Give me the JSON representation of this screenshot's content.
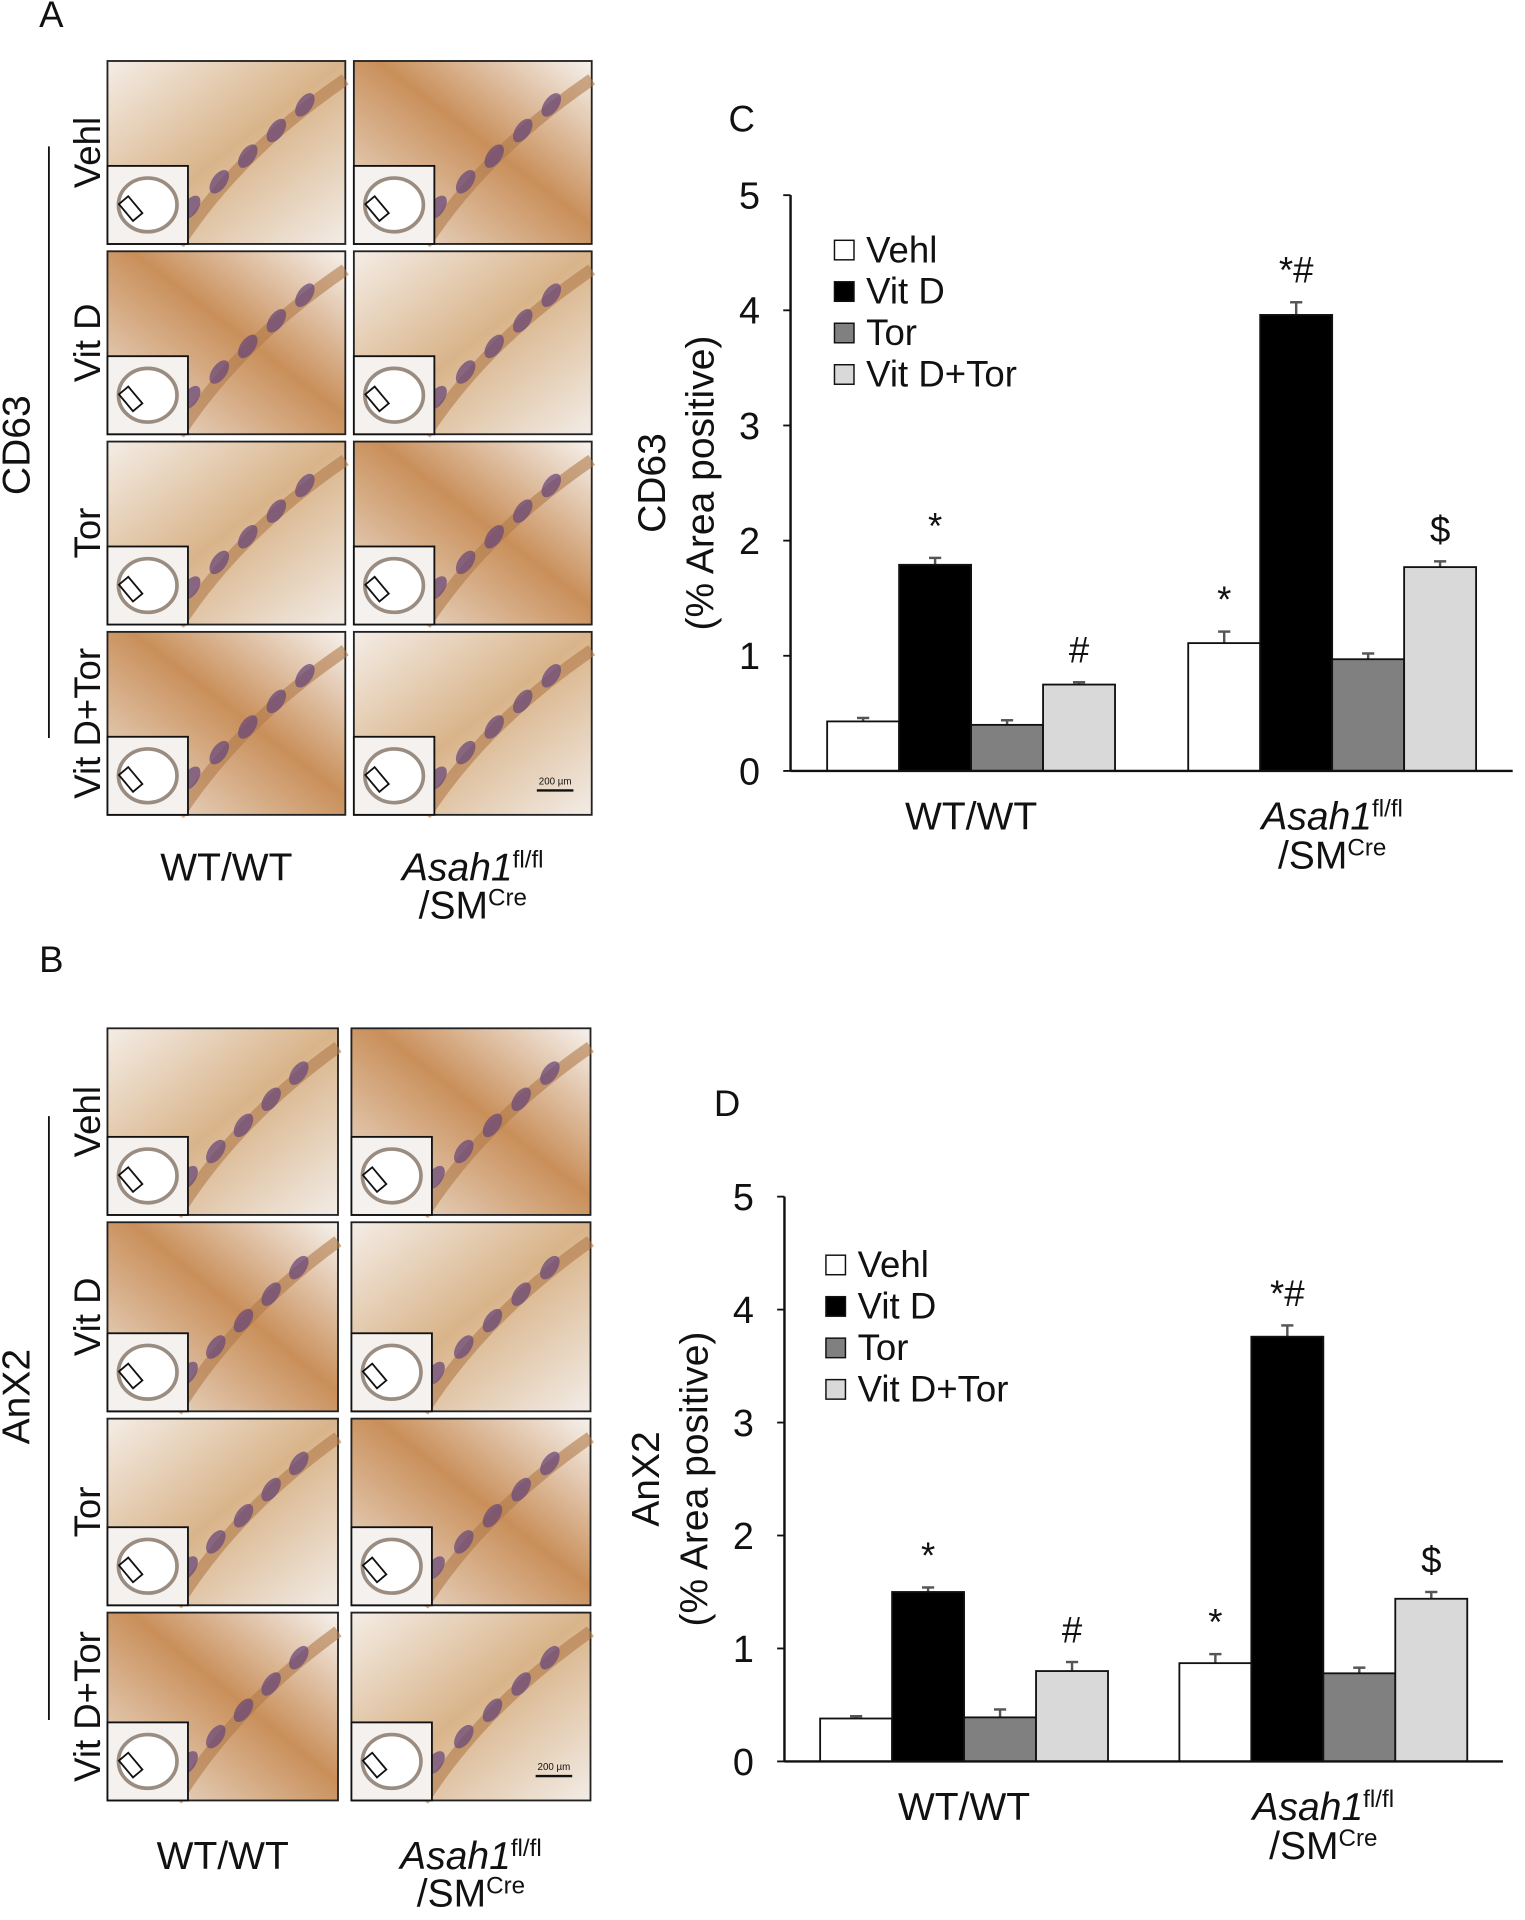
{
  "panels": [
    {
      "letter": "A",
      "stain": "CD63",
      "rows": [
        "Vehl",
        "Vit D",
        "Tor",
        "Vit D+Tor"
      ],
      "columns": [
        [
          {
            "text": "WT/WT"
          }
        ],
        [
          {
            "text": "Asah1",
            "italic": true
          },
          {
            "text": "fl/fl",
            "sup": true
          },
          {
            "text": "/SM",
            "newline": true
          },
          {
            "text": "Cre",
            "sup": true
          }
        ]
      ],
      "scale_bar": "200 µm"
    },
    {
      "letter": "B",
      "stain": "AnX2",
      "rows": [
        "Vehl",
        "Vit D",
        "Tor",
        "Vit D+Tor"
      ],
      "columns": [
        [
          {
            "text": "WT/WT"
          }
        ],
        [
          {
            "text": "Asah1",
            "italic": true
          },
          {
            "text": "fl/fl",
            "sup": true
          },
          {
            "text": "/SM",
            "newline": true
          },
          {
            "text": "Cre",
            "sup": true
          }
        ]
      ],
      "scale_bar": "200 µm"
    }
  ],
  "chart_data": [
    {
      "type": "bar",
      "title": "C",
      "ylabel": [
        "CD63",
        "(% Area positive)"
      ],
      "categories": [
        [
          {
            "text": "WT/WT"
          }
        ],
        [
          {
            "text": "Asah1",
            "italic": true
          },
          {
            "text": "fl/fl",
            "sup": true
          },
          {
            "text": "/SM",
            "newline": true
          },
          {
            "text": "Cre",
            "sup": true
          }
        ]
      ],
      "series": [
        {
          "name": "Vehl",
          "color": "#ffffff",
          "values": [
            0.43,
            1.11
          ],
          "errors": [
            0.03,
            0.1
          ]
        },
        {
          "name": "Vit D",
          "color": "#000000",
          "values": [
            1.79,
            3.96
          ],
          "errors": [
            0.06,
            0.11
          ]
        },
        {
          "name": "Tor",
          "color": "#808080",
          "values": [
            0.4,
            0.97
          ],
          "errors": [
            0.04,
            0.05
          ]
        },
        {
          "name": "Vit D+Tor",
          "color": "#d9d9d9",
          "values": [
            0.75,
            1.77
          ],
          "errors": [
            0.02,
            0.05
          ]
        }
      ],
      "annotations": [
        {
          "text": "*",
          "series": 1,
          "category": 0
        },
        {
          "text": "#",
          "series": 3,
          "category": 0
        },
        {
          "text": "*",
          "series": 0,
          "category": 1
        },
        {
          "text": "*#",
          "series": 1,
          "category": 1
        },
        {
          "text": "$",
          "series": 3,
          "category": 1
        }
      ],
      "ylim": [
        0,
        5
      ],
      "yticks": [
        0,
        1,
        2,
        3,
        4,
        5
      ],
      "legend": "top-left"
    },
    {
      "type": "bar",
      "title": "D",
      "ylabel": [
        "AnX2",
        "(% Area positive)"
      ],
      "categories": [
        [
          {
            "text": "WT/WT"
          }
        ],
        [
          {
            "text": "Asah1",
            "italic": true
          },
          {
            "text": "fl/fl",
            "sup": true
          },
          {
            "text": "/SM",
            "newline": true
          },
          {
            "text": "Cre",
            "sup": true
          }
        ]
      ],
      "series": [
        {
          "name": "Vehl",
          "color": "#ffffff",
          "values": [
            0.38,
            0.87
          ],
          "errors": [
            0.02,
            0.08
          ]
        },
        {
          "name": "Vit D",
          "color": "#000000",
          "values": [
            1.5,
            3.76
          ],
          "errors": [
            0.04,
            0.1
          ]
        },
        {
          "name": "Tor",
          "color": "#808080",
          "values": [
            0.39,
            0.78
          ],
          "errors": [
            0.07,
            0.05
          ]
        },
        {
          "name": "Vit D+Tor",
          "color": "#d9d9d9",
          "values": [
            0.8,
            1.44
          ],
          "errors": [
            0.08,
            0.06
          ]
        }
      ],
      "annotations": [
        {
          "text": "*",
          "series": 1,
          "category": 0
        },
        {
          "text": "#",
          "series": 3,
          "category": 0
        },
        {
          "text": "*",
          "series": 0,
          "category": 1
        },
        {
          "text": "*#",
          "series": 1,
          "category": 1
        },
        {
          "text": "$",
          "series": 3,
          "category": 1
        }
      ],
      "ylim": [
        0,
        5
      ],
      "yticks": [
        0,
        1,
        2,
        3,
        4,
        5
      ],
      "legend": "top-left"
    }
  ]
}
